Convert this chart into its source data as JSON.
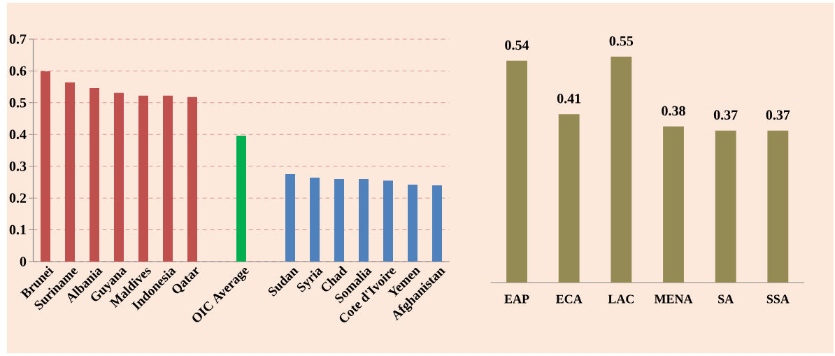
{
  "chart_data": [
    {
      "type": "bar",
      "categories": [
        "Brunei",
        "Suriname",
        "Albania",
        "Guyana",
        "Maldives",
        "Indonesia",
        "Qatar",
        null,
        "OIC Average",
        null,
        "Sudan",
        "Syria",
        "Chad",
        "Somalia",
        "Cote d'Ivoire",
        "Yemen",
        "Afghanistan"
      ],
      "values": [
        0.599,
        0.564,
        0.546,
        0.531,
        0.522,
        0.522,
        0.518,
        null,
        0.396,
        null,
        0.275,
        0.264,
        0.26,
        0.26,
        0.255,
        0.242,
        0.24
      ],
      "colors": [
        "#c0504d",
        "#c0504d",
        "#c0504d",
        "#c0504d",
        "#c0504d",
        "#c0504d",
        "#c0504d",
        null,
        "#00b050",
        null,
        "#4f81bd",
        "#4f81bd",
        "#4f81bd",
        "#4f81bd",
        "#4f81bd",
        "#4f81bd",
        "#4f81bd"
      ],
      "ylim": [
        0,
        0.7
      ],
      "yticks": [
        0,
        0.1,
        0.2,
        0.3,
        0.4,
        0.5,
        0.6,
        0.7
      ],
      "grid": "y"
    },
    {
      "type": "bar",
      "categories": [
        "EAP",
        "ECA",
        "LAC",
        "MENA",
        "SA",
        "SSA"
      ],
      "values": [
        0.54,
        0.41,
        0.55,
        0.38,
        0.37,
        0.37
      ],
      "color": "#948a54",
      "data_labels": true,
      "tick_labels": "x",
      "grid": "y"
    }
  ]
}
